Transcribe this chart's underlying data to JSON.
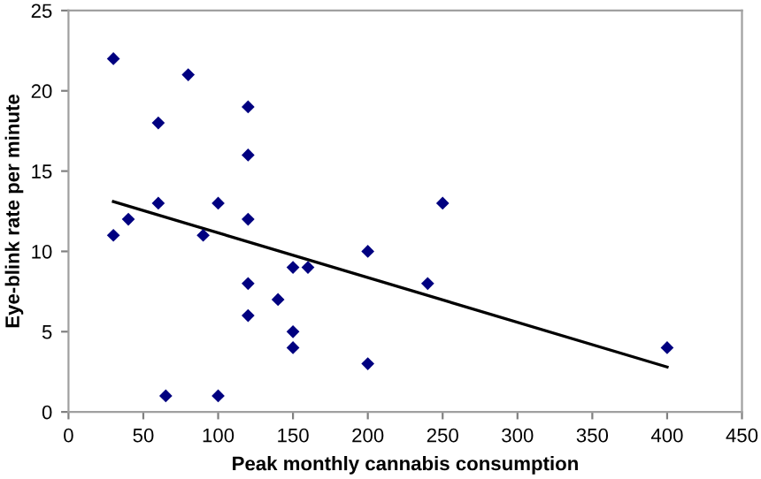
{
  "chart_data": {
    "type": "scatter",
    "xlabel": "Peak monthly cannabis consumption",
    "ylabel": "Eye-blink rate per minute",
    "xlim": [
      0,
      450
    ],
    "xticks": [
      0,
      50,
      100,
      150,
      200,
      250,
      300,
      350,
      400,
      450
    ],
    "ylim": [
      0,
      25
    ],
    "yticks": [
      0,
      5,
      10,
      15,
      20,
      25
    ],
    "grid": false,
    "legend": false,
    "series": [
      {
        "color": "#000080",
        "marker": "diamond",
        "x": [
          30,
          30,
          40,
          60,
          60,
          65,
          80,
          90,
          100,
          100,
          120,
          120,
          120,
          120,
          120,
          140,
          150,
          150,
          150,
          160,
          200,
          200,
          240,
          250,
          400
        ],
        "values": [
          22,
          11,
          12,
          18,
          13,
          1,
          21,
          11,
          13,
          1,
          19,
          16,
          12,
          8,
          6,
          7,
          9,
          5,
          4,
          9,
          10,
          3,
          8,
          13,
          4
        ]
      },
      {
        "type": "line",
        "color": "#000000",
        "marker": "none",
        "line_style": "solid",
        "x": [
          30,
          400
        ],
        "values": [
          13.1,
          2.8
        ]
      }
    ]
  }
}
